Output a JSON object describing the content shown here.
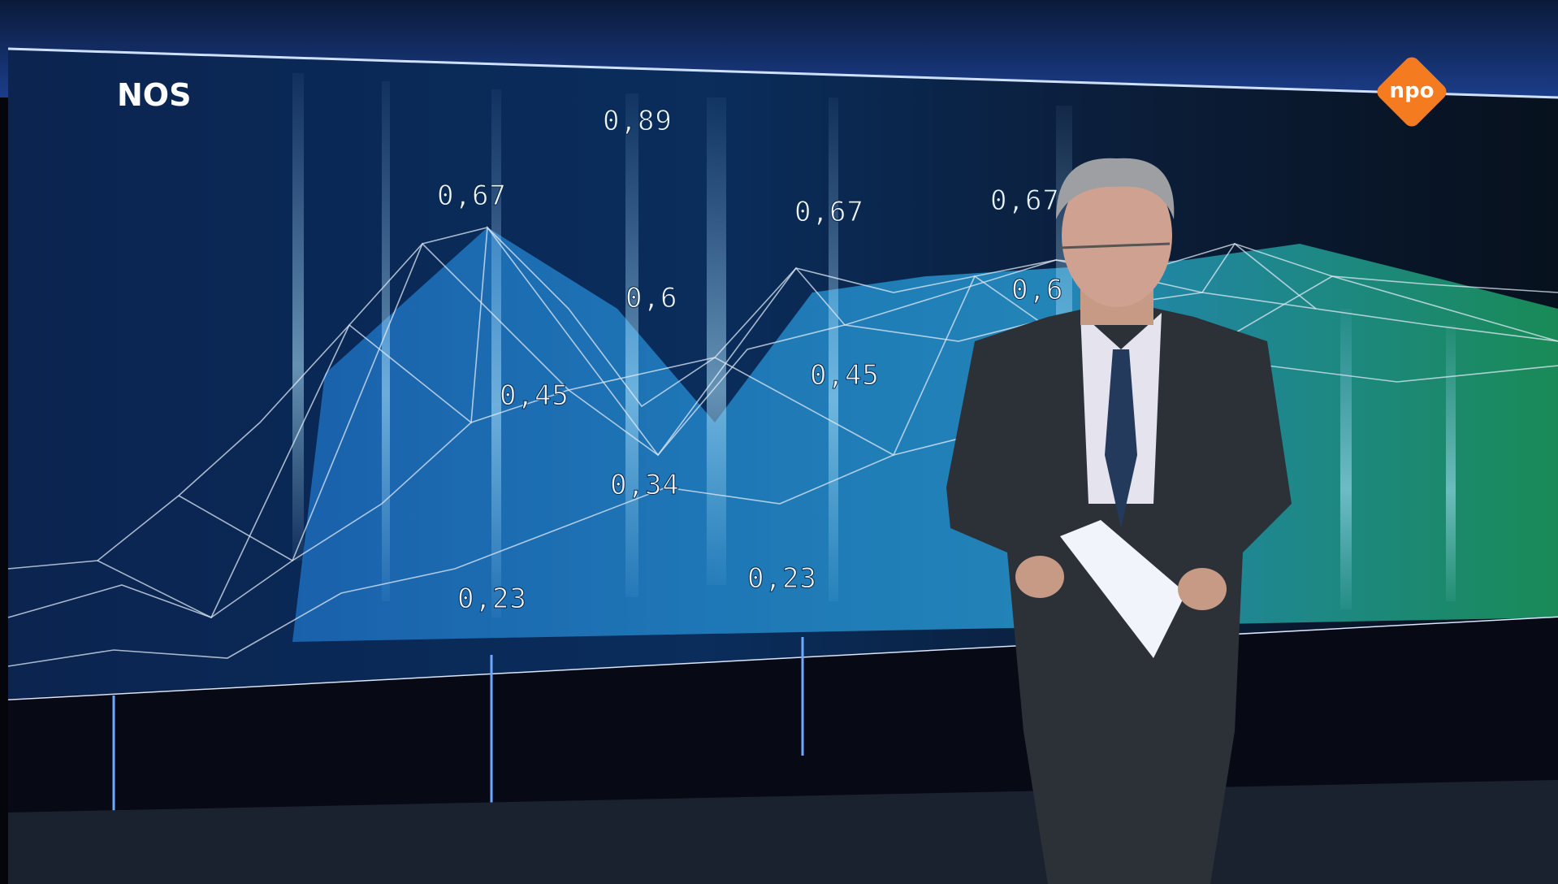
{
  "logos": {
    "broadcaster": "NOS",
    "network": "npo"
  },
  "screen_labels": [
    "0,89",
    "0,67",
    "0,67",
    "0,67",
    "0,6",
    "0,6",
    "0,45",
    "0,45",
    "0,34",
    "0,23",
    "0,23"
  ]
}
